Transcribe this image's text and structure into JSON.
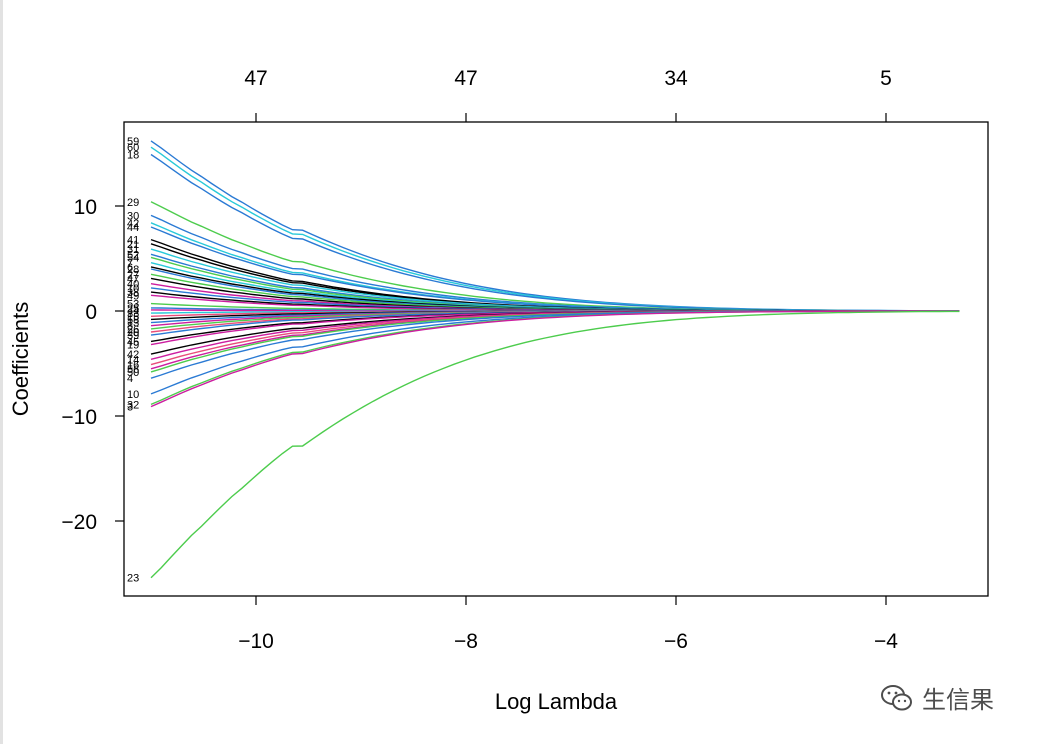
{
  "watermark": {
    "text": "生信果",
    "icon": "wechat-icon"
  },
  "chart_data": {
    "type": "line",
    "title": "",
    "xlabel": "Log Lambda",
    "ylabel": "Coefficients",
    "xlim": [
      -11.25,
      -3.0
    ],
    "ylim": [
      -27,
      18
    ],
    "grid": false,
    "x_ticks": [
      -10,
      -8,
      -6,
      -4
    ],
    "x_tick_labels": [
      "−10",
      "−8",
      "−6",
      "−4"
    ],
    "y_ticks": [
      10,
      0,
      -10,
      -20
    ],
    "y_tick_labels": [
      "10",
      "0",
      "−10",
      "−20"
    ],
    "top_ticks": [
      -10,
      -8,
      -6,
      -4
    ],
    "top_tick_labels": [
      "47",
      "47",
      "34",
      "5"
    ],
    "x_range": [
      -11.0,
      -3.3
    ],
    "series": [
      {
        "name": "59",
        "color": "#2a7ad4",
        "start": 16.2,
        "decay": 0.78
      },
      {
        "name": "60",
        "color": "#28c9d9",
        "start": 15.6,
        "decay": 0.8
      },
      {
        "name": "18",
        "color": "#2a7ad4",
        "start": 14.9,
        "decay": 0.82
      },
      {
        "name": "29",
        "color": "#4dcc4d",
        "start": 10.4,
        "decay": 0.85
      },
      {
        "name": "30",
        "color": "#2a7ad4",
        "start": 9.1,
        "decay": 0.88
      },
      {
        "name": "42",
        "color": "#28c9d9",
        "start": 8.4,
        "decay": 0.9
      },
      {
        "name": "44",
        "color": "#2a7ad4",
        "start": 8.0,
        "decay": 0.9
      },
      {
        "name": "41",
        "color": "#000000",
        "start": 6.8,
        "decay": 0.95
      },
      {
        "name": "21",
        "color": "#000000",
        "start": 6.4,
        "decay": 0.95
      },
      {
        "name": "31",
        "color": "#28c9d9",
        "start": 5.9,
        "decay": 0.95
      },
      {
        "name": "52",
        "color": "#2a7ad4",
        "start": 5.4,
        "decay": 0.98
      },
      {
        "name": "54",
        "color": "#4dcc4d",
        "start": 5.1,
        "decay": 1.0
      },
      {
        "name": "7",
        "color": "#28c9d9",
        "start": 4.6,
        "decay": 1.0
      },
      {
        "name": "6",
        "color": "#000000",
        "start": 4.2,
        "decay": 1.0
      },
      {
        "name": "28",
        "color": "#2a7ad4",
        "start": 4.0,
        "decay": 1.05
      },
      {
        "name": "27",
        "color": "#4dcc4d",
        "start": 3.5,
        "decay": 1.05
      },
      {
        "name": "47",
        "color": "#000000",
        "start": 3.1,
        "decay": 1.1
      },
      {
        "name": "40",
        "color": "#cc1ea0",
        "start": 2.6,
        "decay": 1.1
      },
      {
        "name": "10",
        "color": "#2a7ad4",
        "start": 2.2,
        "decay": 1.1
      },
      {
        "name": "38",
        "color": "#000000",
        "start": 1.8,
        "decay": 1.15
      },
      {
        "name": "49",
        "color": "#cc1ea0",
        "start": 1.5,
        "decay": 1.15
      },
      {
        "name": "53",
        "color": "#4dcc4d",
        "start": 0.7,
        "decay": 1.2
      },
      {
        "name": "25",
        "color": "#2a7ad4",
        "start": 0.3,
        "decay": 1.2
      },
      {
        "name": "34",
        "color": "#cc1ea0",
        "start": 0.1,
        "decay": 1.2
      },
      {
        "name": "33",
        "color": "#28c9d9",
        "start": -0.2,
        "decay": 1.2
      },
      {
        "name": "15",
        "color": "#e84d7a",
        "start": -0.5,
        "decay": 1.2
      },
      {
        "name": "58",
        "color": "#000000",
        "start": -0.8,
        "decay": 1.2
      },
      {
        "name": "13",
        "color": "#2a7ad4",
        "start": -1.1,
        "decay": 1.15
      },
      {
        "name": "8",
        "color": "#cc1ea0",
        "start": -1.4,
        "decay": 1.15
      },
      {
        "name": "26",
        "color": "#4dcc4d",
        "start": -1.7,
        "decay": 1.15
      },
      {
        "name": "20",
        "color": "#e84d7a",
        "start": -2.0,
        "decay": 1.1
      },
      {
        "name": "39",
        "color": "#2a7ad4",
        "start": -2.3,
        "decay": 1.1
      },
      {
        "name": "45",
        "color": "#000000",
        "start": -2.9,
        "decay": 1.05
      },
      {
        "name": "19",
        "color": "#cc1ea0",
        "start": -3.2,
        "decay": 1.05
      },
      {
        "name": "42",
        "color": "#000000",
        "start": -4.1,
        "decay": 1.0
      },
      {
        "name": "14",
        "color": "#cc1ea0",
        "start": -4.6,
        "decay": 1.0
      },
      {
        "name": "16",
        "color": "#e84d7a",
        "start": -5.1,
        "decay": 0.98
      },
      {
        "name": "56",
        "color": "#cc1ea0",
        "start": -5.5,
        "decay": 0.95
      },
      {
        "name": "50",
        "color": "#4dcc4d",
        "start": -5.8,
        "decay": 0.95
      },
      {
        "name": "4",
        "color": "#2a7ad4",
        "start": -6.4,
        "decay": 0.92
      },
      {
        "name": "10",
        "color": "#2a7ad4",
        "start": -7.9,
        "decay": 0.9
      },
      {
        "name": "32",
        "color": "#4dcc4d",
        "start": -8.9,
        "decay": 0.88
      },
      {
        "name": "3",
        "color": "#cc1ea0",
        "start": -9.1,
        "decay": 0.86
      },
      {
        "name": "23",
        "color": "#4dcc4d",
        "start": -25.4,
        "decay": 0.7
      }
    ]
  }
}
